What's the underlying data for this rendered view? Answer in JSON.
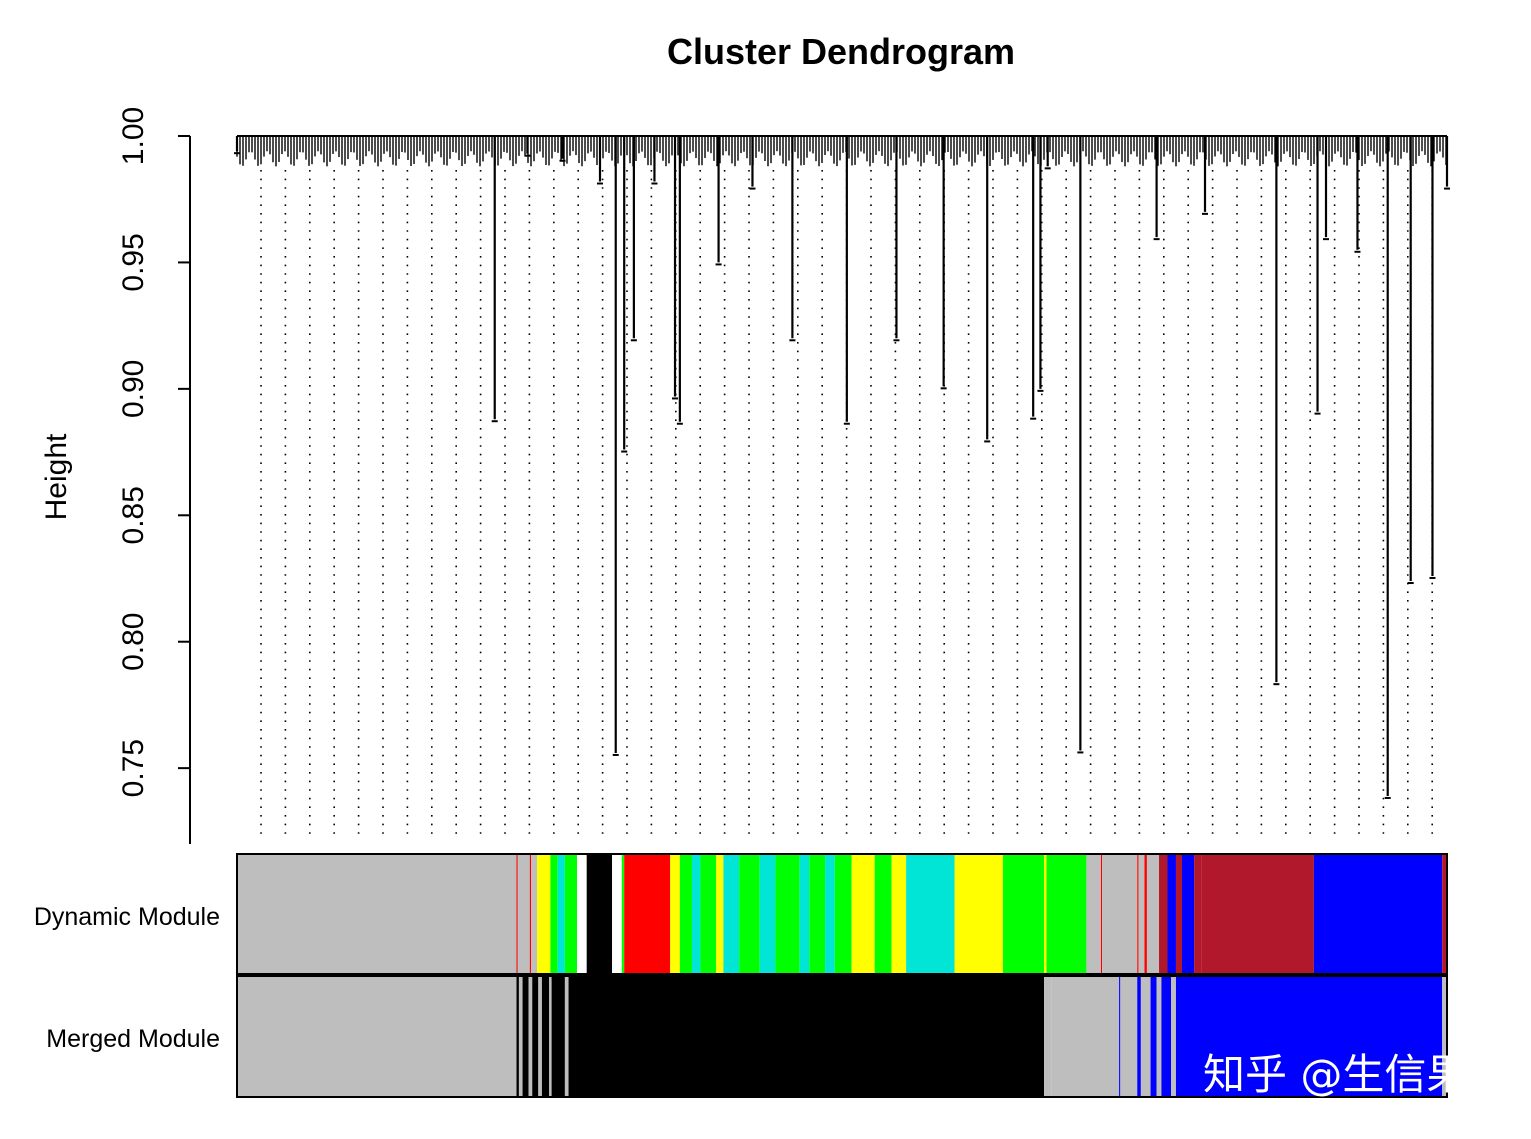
{
  "chart_data": {
    "type": "dendrogram",
    "title": "Cluster Dendrogram",
    "ylabel": "Height",
    "xlabel": "",
    "ylim": [
      0.72,
      1.0
    ],
    "y_ticks": [
      0.75,
      0.8,
      0.85,
      0.9,
      0.95,
      1.0
    ],
    "y_tick_labels": [
      "0.75",
      "0.80",
      "0.85",
      "0.90",
      "0.95",
      "1.00"
    ],
    "grid": "none",
    "branches": [
      {
        "x": 0.0,
        "y": 0.994
      },
      {
        "x": 0.213,
        "y": 0.888
      },
      {
        "x": 0.24,
        "y": 0.993
      },
      {
        "x": 0.269,
        "y": 0.991
      },
      {
        "x": 0.3,
        "y": 0.982
      },
      {
        "x": 0.313,
        "y": 0.756
      },
      {
        "x": 0.32,
        "y": 0.876
      },
      {
        "x": 0.328,
        "y": 0.92
      },
      {
        "x": 0.345,
        "y": 0.982
      },
      {
        "x": 0.362,
        "y": 0.897
      },
      {
        "x": 0.366,
        "y": 0.887
      },
      {
        "x": 0.398,
        "y": 0.95
      },
      {
        "x": 0.426,
        "y": 0.98
      },
      {
        "x": 0.459,
        "y": 0.92
      },
      {
        "x": 0.504,
        "y": 0.887
      },
      {
        "x": 0.545,
        "y": 0.92
      },
      {
        "x": 0.584,
        "y": 0.901
      },
      {
        "x": 0.62,
        "y": 0.88
      },
      {
        "x": 0.658,
        "y": 0.889
      },
      {
        "x": 0.664,
        "y": 0.9
      },
      {
        "x": 0.67,
        "y": 0.988
      },
      {
        "x": 0.697,
        "y": 0.757
      },
      {
        "x": 0.76,
        "y": 0.96
      },
      {
        "x": 0.8,
        "y": 0.97
      },
      {
        "x": 0.859,
        "y": 0.784
      },
      {
        "x": 0.893,
        "y": 0.891
      },
      {
        "x": 0.9,
        "y": 0.96
      },
      {
        "x": 0.926,
        "y": 0.955
      },
      {
        "x": 0.951,
        "y": 0.739
      },
      {
        "x": 0.97,
        "y": 0.824
      },
      {
        "x": 0.988,
        "y": 0.826
      },
      {
        "x": 1.0,
        "y": 0.98
      }
    ],
    "module_rows": [
      "Dynamic Module",
      "Merged Module"
    ],
    "dynamic_module": [
      {
        "from": 0.0,
        "to": 0.231,
        "color": "#bebebe"
      },
      {
        "from": 0.231,
        "to": 0.232,
        "color": "#ff0000"
      },
      {
        "from": 0.232,
        "to": 0.242,
        "color": "#bebebe"
      },
      {
        "from": 0.242,
        "to": 0.243,
        "color": "#ff0000"
      },
      {
        "from": 0.243,
        "to": 0.248,
        "color": "#bebebe"
      },
      {
        "from": 0.248,
        "to": 0.259,
        "color": "#ffff00"
      },
      {
        "from": 0.259,
        "to": 0.265,
        "color": "#00ff00"
      },
      {
        "from": 0.265,
        "to": 0.271,
        "color": "#00e5d6"
      },
      {
        "from": 0.271,
        "to": 0.281,
        "color": "#00ff00"
      },
      {
        "from": 0.281,
        "to": 0.289,
        "color": "#ffffff"
      },
      {
        "from": 0.289,
        "to": 0.31,
        "color": "#000000"
      },
      {
        "from": 0.31,
        "to": 0.318,
        "color": "#ffffff"
      },
      {
        "from": 0.318,
        "to": 0.32,
        "color": "#00ff00"
      },
      {
        "from": 0.32,
        "to": 0.358,
        "color": "#ff0000"
      },
      {
        "from": 0.358,
        "to": 0.366,
        "color": "#ffff00"
      },
      {
        "from": 0.366,
        "to": 0.376,
        "color": "#00ff00"
      },
      {
        "from": 0.376,
        "to": 0.383,
        "color": "#00e5d6"
      },
      {
        "from": 0.383,
        "to": 0.396,
        "color": "#00ff00"
      },
      {
        "from": 0.396,
        "to": 0.402,
        "color": "#ffff00"
      },
      {
        "from": 0.402,
        "to": 0.415,
        "color": "#00e5d6"
      },
      {
        "from": 0.415,
        "to": 0.432,
        "color": "#00ff00"
      },
      {
        "from": 0.432,
        "to": 0.445,
        "color": "#00e5d6"
      },
      {
        "from": 0.445,
        "to": 0.465,
        "color": "#00ff00"
      },
      {
        "from": 0.465,
        "to": 0.473,
        "color": "#00e5d6"
      },
      {
        "from": 0.473,
        "to": 0.486,
        "color": "#00ff00"
      },
      {
        "from": 0.486,
        "to": 0.494,
        "color": "#00e5d6"
      },
      {
        "from": 0.494,
        "to": 0.508,
        "color": "#00ff00"
      },
      {
        "from": 0.508,
        "to": 0.527,
        "color": "#ffff00"
      },
      {
        "from": 0.527,
        "to": 0.541,
        "color": "#00ff00"
      },
      {
        "from": 0.541,
        "to": 0.553,
        "color": "#ffff00"
      },
      {
        "from": 0.553,
        "to": 0.593,
        "color": "#00e5d6"
      },
      {
        "from": 0.593,
        "to": 0.633,
        "color": "#ffff00"
      },
      {
        "from": 0.633,
        "to": 0.667,
        "color": "#00ff00"
      },
      {
        "from": 0.667,
        "to": 0.669,
        "color": "#ffff00"
      },
      {
        "from": 0.669,
        "to": 0.702,
        "color": "#00ff00"
      },
      {
        "from": 0.702,
        "to": 0.714,
        "color": "#bebebe"
      },
      {
        "from": 0.714,
        "to": 0.715,
        "color": "#ff0000"
      },
      {
        "from": 0.715,
        "to": 0.731,
        "color": "#bebebe"
      },
      {
        "from": 0.731,
        "to": 0.744,
        "color": "#bebebe"
      },
      {
        "from": 0.744,
        "to": 0.745,
        "color": "#ff0000"
      },
      {
        "from": 0.745,
        "to": 0.75,
        "color": "#bebebe"
      },
      {
        "from": 0.75,
        "to": 0.752,
        "color": "#ff0000"
      },
      {
        "from": 0.752,
        "to": 0.762,
        "color": "#bebebe"
      },
      {
        "from": 0.762,
        "to": 0.769,
        "color": "#b2182b"
      },
      {
        "from": 0.769,
        "to": 0.776,
        "color": "#0000ff"
      },
      {
        "from": 0.776,
        "to": 0.781,
        "color": "#b2182b"
      },
      {
        "from": 0.781,
        "to": 0.791,
        "color": "#0000ff"
      },
      {
        "from": 0.791,
        "to": 0.797,
        "color": "#b2182b"
      },
      {
        "from": 0.797,
        "to": 0.89,
        "color": "#b2182b"
      },
      {
        "from": 0.89,
        "to": 0.996,
        "color": "#0000ff"
      },
      {
        "from": 0.996,
        "to": 1.0,
        "color": "#b2182b"
      }
    ],
    "merged_module": [
      {
        "from": 0.0,
        "to": 0.231,
        "color": "#bebebe"
      },
      {
        "from": 0.231,
        "to": 0.233,
        "color": "#000000"
      },
      {
        "from": 0.233,
        "to": 0.236,
        "color": "#bebebe"
      },
      {
        "from": 0.236,
        "to": 0.241,
        "color": "#000000"
      },
      {
        "from": 0.241,
        "to": 0.244,
        "color": "#bebebe"
      },
      {
        "from": 0.244,
        "to": 0.249,
        "color": "#000000"
      },
      {
        "from": 0.249,
        "to": 0.252,
        "color": "#bebebe"
      },
      {
        "from": 0.252,
        "to": 0.258,
        "color": "#000000"
      },
      {
        "from": 0.258,
        "to": 0.26,
        "color": "#bebebe"
      },
      {
        "from": 0.26,
        "to": 0.271,
        "color": "#000000"
      },
      {
        "from": 0.271,
        "to": 0.274,
        "color": "#bebebe"
      },
      {
        "from": 0.274,
        "to": 0.667,
        "color": "#000000"
      },
      {
        "from": 0.667,
        "to": 0.673,
        "color": "#bebebe"
      },
      {
        "from": 0.673,
        "to": 0.729,
        "color": "#bebebe"
      },
      {
        "from": 0.729,
        "to": 0.73,
        "color": "#0000ff"
      },
      {
        "from": 0.73,
        "to": 0.744,
        "color": "#bebebe"
      },
      {
        "from": 0.744,
        "to": 0.747,
        "color": "#0000ff"
      },
      {
        "from": 0.747,
        "to": 0.755,
        "color": "#bebebe"
      },
      {
        "from": 0.755,
        "to": 0.76,
        "color": "#0000ff"
      },
      {
        "from": 0.76,
        "to": 0.764,
        "color": "#bebebe"
      },
      {
        "from": 0.764,
        "to": 0.772,
        "color": "#0000ff"
      },
      {
        "from": 0.772,
        "to": 0.776,
        "color": "#bebebe"
      },
      {
        "from": 0.776,
        "to": 0.996,
        "color": "#0000ff"
      },
      {
        "from": 0.996,
        "to": 1.0,
        "color": "#bebebe"
      }
    ]
  },
  "watermark": "知乎 @生信果"
}
